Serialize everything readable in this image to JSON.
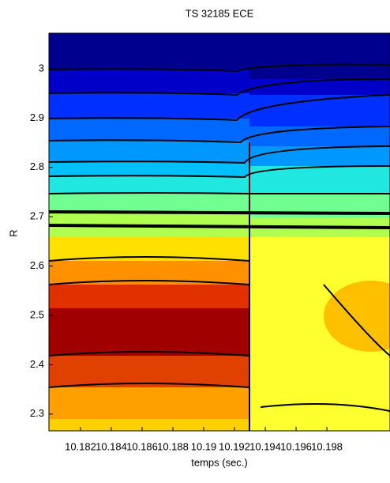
{
  "chart_data": {
    "type": "contour",
    "title": "TS 32185 ECE",
    "x_label": "temps (sec.)",
    "y_label": "R",
    "xlim": [
      10.17995,
      10.2021
    ],
    "ylim": [
      2.266,
      3.072
    ],
    "xticks": [
      10.182,
      10.184,
      10.186,
      10.188,
      10.19,
      10.192,
      10.194,
      10.196,
      10.198
    ],
    "yticks": [
      2.3,
      2.4,
      2.5,
      2.6,
      2.7,
      2.8,
      2.9,
      3
    ]
  }
}
